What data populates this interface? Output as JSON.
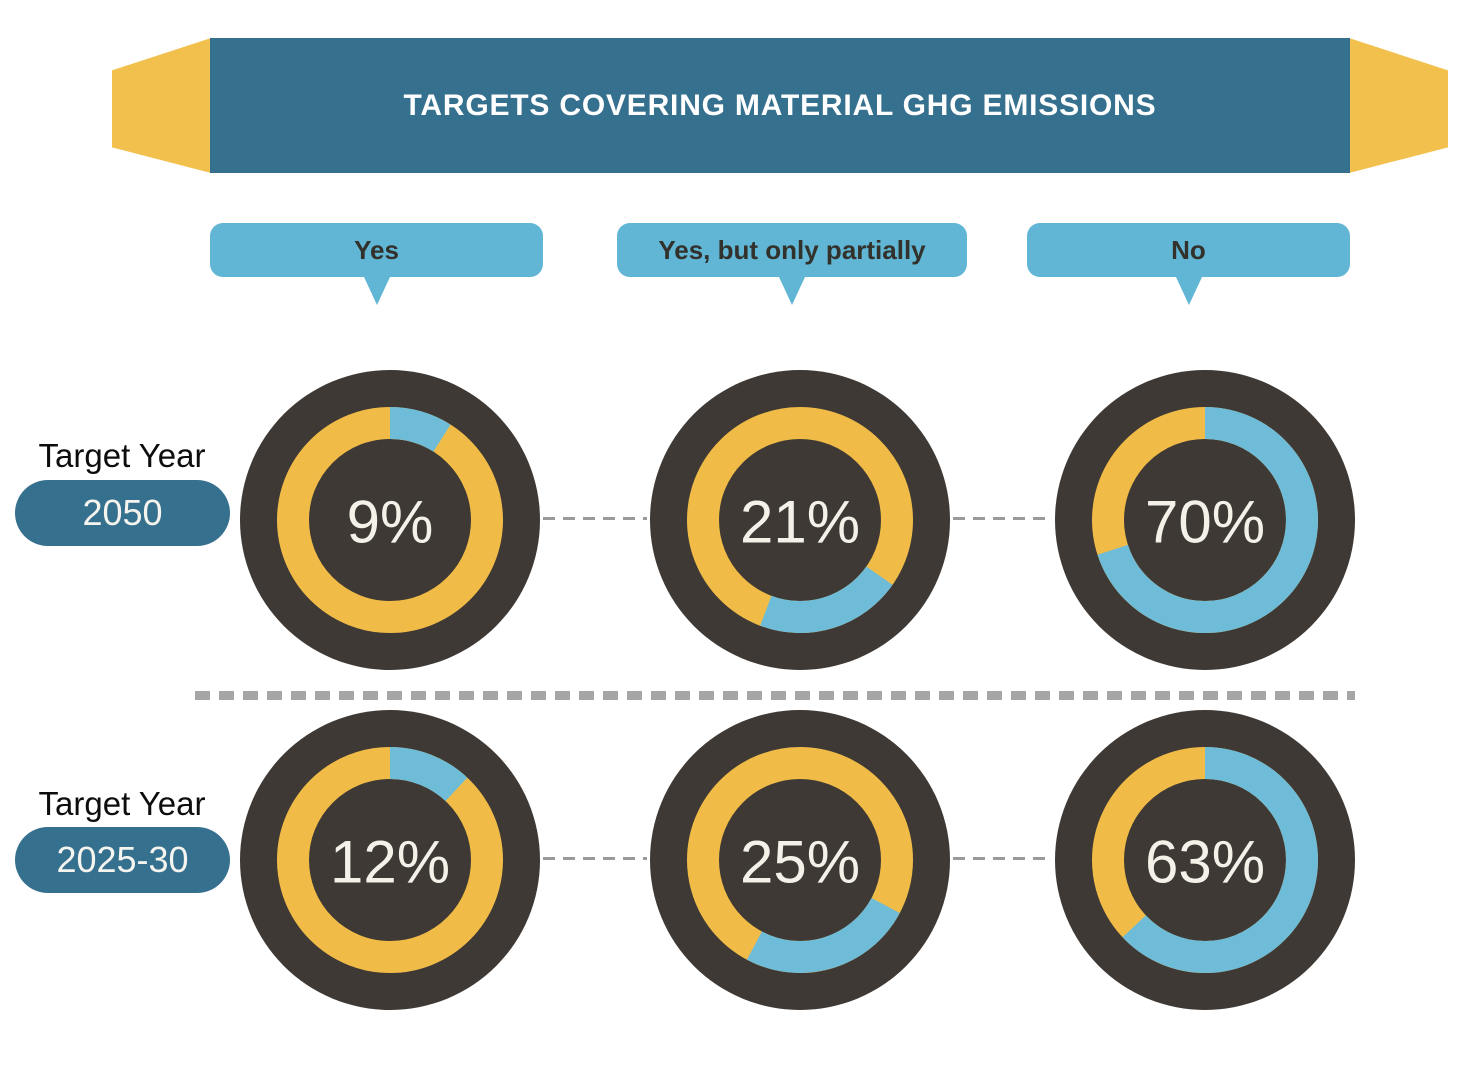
{
  "title": "TARGETS COVERING MATERIAL GHG EMISSIONS",
  "columns": [
    {
      "label": "Yes"
    },
    {
      "label": "Yes, but only partially"
    },
    {
      "label": "No"
    }
  ],
  "rows": [
    {
      "label": "Target Year",
      "year": "2050"
    },
    {
      "label": "Target Year",
      "year": "2025-30"
    }
  ],
  "colors": {
    "deep_blue": "#35708f",
    "ribbon_yellow": "#f2c04c",
    "header_blue": "#60b6d4",
    "ring_yellow": "#f0bc47",
    "ring_blue": "#6fbcd9",
    "circle_dark": "#3e3935",
    "text_dark": "#33312c",
    "text_light": "#f4f1e9",
    "divider_gray": "#a6a6a6",
    "connector_gray": "#9a9a9a"
  },
  "chart_data": {
    "type": "pie",
    "subtype": "donut-grid",
    "title": "TARGETS COVERING MATERIAL GHG EMISSIONS",
    "unit": "%",
    "categories": [
      "Yes",
      "Yes, but only partially",
      "No"
    ],
    "series": [
      {
        "name": "Target Year 2050",
        "values": [
          9,
          21,
          70
        ]
      },
      {
        "name": "Target Year 2025-30",
        "values": [
          12,
          25,
          63
        ]
      }
    ],
    "donut_labels": [
      "9%",
      "21%",
      "70%",
      "12%",
      "25%",
      "63%"
    ],
    "legend_position": "top",
    "layout_hints": {
      "value_color": "#6fbcd9",
      "remainder_color": "#f0bc47",
      "value_start_deg": [
        [
          0,
          125,
          0
        ],
        [
          0,
          118,
          0
        ]
      ],
      "grid": "2x3"
    }
  }
}
